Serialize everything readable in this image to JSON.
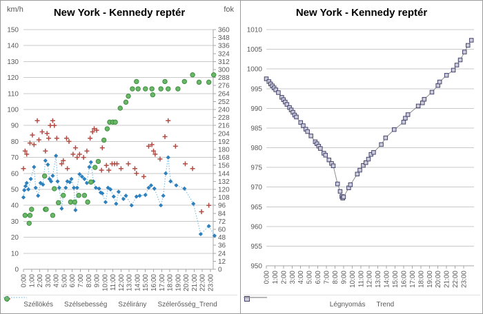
{
  "colors": {
    "gust": "#b04a42",
    "speed": "#2e81bd",
    "trend_dotted": "#7fbde0",
    "direction_fill": "#6ab76a",
    "direction_stroke": "#3f8f3f",
    "pressure_fill": "#ccccdb",
    "pressure_stroke": "#43436b",
    "pressure_trend": "#8c8c8c",
    "grid": "#c9c9c9",
    "axis": "#a6a6a6",
    "tick_text": "#595959",
    "title": "#000000"
  },
  "chart_data": [
    {
      "type": "scatter",
      "title": "New York - Kennedy reptér",
      "y_left": {
        "unit": "km/h",
        "min": 0,
        "max": 150,
        "step": 10,
        "ticks": [
          0,
          10,
          20,
          30,
          40,
          50,
          60,
          70,
          80,
          90,
          100,
          110,
          120,
          130,
          140,
          150
        ]
      },
      "y_right": {
        "unit": "fok",
        "min": 0,
        "max": 360,
        "step": 12,
        "ticks": [
          0,
          12,
          24,
          36,
          48,
          60,
          72,
          84,
          96,
          108,
          120,
          132,
          144,
          156,
          168,
          180,
          192,
          204,
          216,
          228,
          240,
          252,
          264,
          276,
          288,
          300,
          312,
          324,
          336,
          348,
          360
        ]
      },
      "x_labels": [
        "0:00",
        "1:00",
        "2:00",
        "3:00",
        "4:00",
        "5:00",
        "6:00",
        "7:00",
        "8:00",
        "9:00",
        "10:00",
        "11:00",
        "12:00",
        "13:00",
        "14:00",
        "15:00",
        "16:00",
        "17:00",
        "18:00",
        "19:00",
        "20:00",
        "21:00",
        "22:00",
        "23:00"
      ],
      "legend_position": "bottom",
      "grid": true,
      "series": [
        {
          "name": "Széllökés",
          "marker": "plus",
          "axis": "left",
          "points": [
            [
              0,
              63
            ],
            [
              0.2,
              74
            ],
            [
              0.4,
              72
            ],
            [
              0.8,
              79
            ],
            [
              1.1,
              84
            ],
            [
              1.3,
              78
            ],
            [
              1.7,
              93
            ],
            [
              1.9,
              81
            ],
            [
              2.3,
              86
            ],
            [
              2.7,
              74
            ],
            [
              2.9,
              85
            ],
            [
              3.1,
              82
            ],
            [
              3.3,
              90
            ],
            [
              3.6,
              93
            ],
            [
              3.8,
              90
            ],
            [
              4.1,
              82
            ],
            [
              4.7,
              66
            ],
            [
              4.9,
              68
            ],
            [
              5.3,
              82
            ],
            [
              5.4,
              63
            ],
            [
              5.6,
              80
            ],
            [
              6.1,
              72
            ],
            [
              6.4,
              76
            ],
            [
              6.6,
              70
            ],
            [
              6.9,
              72
            ],
            [
              7.4,
              70
            ],
            [
              7.8,
              74
            ],
            [
              8.2,
              82
            ],
            [
              8.5,
              86
            ],
            [
              8.7,
              88
            ],
            [
              9,
              87
            ],
            [
              9.6,
              62
            ],
            [
              9.7,
              76
            ],
            [
              10.2,
              65
            ],
            [
              10.5,
              62
            ],
            [
              10.9,
              66
            ],
            [
              11.2,
              66
            ],
            [
              11.5,
              66
            ],
            [
              12,
              63
            ],
            [
              12.9,
              66
            ],
            [
              13.7,
              63
            ],
            [
              13.9,
              60
            ],
            [
              14.8,
              58
            ],
            [
              15.4,
              77
            ],
            [
              15.8,
              78
            ],
            [
              16,
              74
            ],
            [
              16.2,
              72
            ],
            [
              16.8,
              69
            ],
            [
              17.4,
              83
            ],
            [
              17.8,
              93
            ],
            [
              18.7,
              77
            ],
            [
              19.9,
              66
            ],
            [
              20.8,
              63
            ],
            [
              21.9,
              36
            ],
            [
              22.8,
              40
            ]
          ]
        },
        {
          "name": "Szélsebesség",
          "marker": "diamond",
          "axis": "left",
          "points": [
            [
              0,
              45
            ],
            [
              0.1,
              49.5
            ],
            [
              0.25,
              52
            ],
            [
              0.4,
              54
            ],
            [
              0.6,
              50
            ],
            [
              0.9,
              56.5
            ],
            [
              1.3,
              64
            ],
            [
              1.5,
              51
            ],
            [
              1.8,
              46
            ],
            [
              2.1,
              54
            ],
            [
              2.4,
              53
            ],
            [
              2.7,
              68
            ],
            [
              3,
              65.5
            ],
            [
              3.2,
              56.5
            ],
            [
              3.4,
              55
            ],
            [
              3.6,
              58.5
            ],
            [
              4,
              71
            ],
            [
              4.2,
              55
            ],
            [
              4.4,
              51
            ],
            [
              4.7,
              38
            ],
            [
              4.9,
              46.5
            ],
            [
              5.2,
              51
            ],
            [
              5.4,
              55
            ],
            [
              5.7,
              54.5
            ],
            [
              5.9,
              56.5
            ],
            [
              6.2,
              51
            ],
            [
              6.4,
              37
            ],
            [
              6.6,
              51
            ],
            [
              6.9,
              59.5
            ],
            [
              7.2,
              58
            ],
            [
              7.5,
              56.5
            ],
            [
              7.8,
              54
            ],
            [
              8.1,
              64
            ],
            [
              8.3,
              67
            ],
            [
              8.6,
              55
            ],
            [
              8.9,
              51
            ],
            [
              9.3,
              50.5
            ],
            [
              9.5,
              48
            ],
            [
              9.7,
              47.5
            ],
            [
              10.1,
              42
            ],
            [
              10.4,
              51
            ],
            [
              10.7,
              50
            ],
            [
              11.1,
              45.5
            ],
            [
              11.4,
              41
            ],
            [
              11.7,
              48.5
            ],
            [
              12.3,
              44
            ],
            [
              12.6,
              46
            ],
            [
              13.3,
              40
            ],
            [
              13.9,
              45.5
            ],
            [
              14.3,
              46
            ],
            [
              15,
              46.5
            ],
            [
              15.4,
              51
            ],
            [
              15.7,
              52.5
            ],
            [
              16.1,
              50.5
            ],
            [
              16.9,
              40
            ],
            [
              17.2,
              46
            ],
            [
              17.5,
              60
            ],
            [
              17.8,
              70
            ],
            [
              18.1,
              55
            ],
            [
              18.8,
              52.5
            ],
            [
              19.8,
              50.5
            ],
            [
              20.9,
              41
            ],
            [
              21.8,
              22
            ],
            [
              22.8,
              27
            ],
            [
              23.5,
              21
            ]
          ]
        },
        {
          "name": "Szélirány",
          "marker": "circle",
          "axis": "right",
          "points": [
            [
              0.2,
              81
            ],
            [
              0.7,
              69
            ],
            [
              0.8,
              81
            ],
            [
              1,
              90
            ],
            [
              2.6,
              140
            ],
            [
              2.7,
              90
            ],
            [
              2.8,
              90
            ],
            [
              3.6,
              81
            ],
            [
              3.8,
              121
            ],
            [
              4.3,
              100
            ],
            [
              4.9,
              111
            ],
            [
              5.8,
              101
            ],
            [
              6.3,
              101
            ],
            [
              6.8,
              111
            ],
            [
              7.5,
              111
            ],
            [
              7.9,
              101
            ],
            [
              8.3,
              131
            ],
            [
              8.8,
              153
            ],
            [
              9.2,
              162
            ],
            [
              9.9,
              194
            ],
            [
              10.3,
              211
            ],
            [
              10.6,
              221
            ],
            [
              11,
              221
            ],
            [
              11.3,
              221
            ],
            [
              11.9,
              242
            ],
            [
              12.6,
              251
            ],
            [
              12.9,
              260
            ],
            [
              13.4,
              271
            ],
            [
              13.9,
              282
            ],
            [
              14.1,
              271
            ],
            [
              15,
              271
            ],
            [
              15.8,
              271
            ],
            [
              15.9,
              262
            ],
            [
              16.9,
              271
            ],
            [
              17.4,
              282
            ],
            [
              17.8,
              271
            ],
            [
              19,
              271
            ],
            [
              19.8,
              282
            ],
            [
              20.8,
              292
            ],
            [
              21.6,
              281
            ],
            [
              22.8,
              281
            ],
            [
              23.4,
              292
            ]
          ]
        },
        {
          "name": "Szélerősség_Trend",
          "marker": "dotted-line",
          "axis": "left",
          "points_ref": 1
        }
      ]
    },
    {
      "type": "line",
      "title": "New York - Kennedy reptér",
      "y": {
        "min": 950,
        "max": 1010,
        "step": 5,
        "ticks": [
          950,
          955,
          960,
          965,
          970,
          975,
          980,
          985,
          990,
          995,
          1000,
          1005,
          1010
        ]
      },
      "x_labels": [
        "0:00",
        "1:00",
        "2:00",
        "3:00",
        "4:00",
        "5:00",
        "6:00",
        "7:00",
        "8:00",
        "9:00",
        "10:00",
        "11:00",
        "12:00",
        "13:00",
        "14:00",
        "15:00",
        "16:00",
        "17:00",
        "18:00",
        "19:00",
        "20:00",
        "21:00",
        "22:00",
        "23:00"
      ],
      "legend_position": "bottom",
      "grid": true,
      "series": [
        {
          "name": "Légnyomás",
          "marker": "square",
          "points": [
            [
              0,
              997.5
            ],
            [
              0.3,
              996.8
            ],
            [
              0.5,
              996.2
            ],
            [
              0.7,
              995.7
            ],
            [
              0.9,
              995.2
            ],
            [
              1.1,
              994.7
            ],
            [
              1.4,
              994
            ],
            [
              1.8,
              992.8
            ],
            [
              2,
              992.2
            ],
            [
              2.2,
              991.6
            ],
            [
              2.4,
              991
            ],
            [
              2.7,
              990.2
            ],
            [
              2.9,
              989.6
            ],
            [
              3.1,
              989
            ],
            [
              3.3,
              988.3
            ],
            [
              3.5,
              987.8
            ],
            [
              4,
              986.4
            ],
            [
              4.3,
              985.6
            ],
            [
              4.6,
              984.7
            ],
            [
              4.8,
              984.1
            ],
            [
              5.2,
              983
            ],
            [
              5.7,
              981.5
            ],
            [
              5.9,
              981
            ],
            [
              6.1,
              980.4
            ],
            [
              6.3,
              979.8
            ],
            [
              6.7,
              978.6
            ],
            [
              6.9,
              978.1
            ],
            [
              7.3,
              976.9
            ],
            [
              7.6,
              976
            ],
            [
              7.8,
              975.4
            ],
            [
              8.3,
              970.8
            ],
            [
              8.6,
              968.9
            ],
            [
              8.8,
              967.6
            ],
            [
              8.9,
              967.2
            ],
            [
              9,
              967.5
            ],
            [
              9.6,
              969.8
            ],
            [
              9.8,
              970.6
            ],
            [
              10.6,
              973.3
            ],
            [
              10.9,
              974.3
            ],
            [
              11.3,
              975.5
            ],
            [
              11.6,
              976.2
            ],
            [
              11.9,
              977.1
            ],
            [
              12.2,
              978.3
            ],
            [
              12.5,
              978.8
            ],
            [
              13.4,
              980.8
            ],
            [
              13.9,
              982.5
            ],
            [
              14.9,
              984.6
            ],
            [
              16,
              986.5
            ],
            [
              16.2,
              987.5
            ],
            [
              16.5,
              988.4
            ],
            [
              17.7,
              990.6
            ],
            [
              18.2,
              991.4
            ],
            [
              18.4,
              992.3
            ],
            [
              19.3,
              994.1
            ],
            [
              20,
              995.8
            ],
            [
              20.2,
              996.7
            ],
            [
              21,
              998.4
            ],
            [
              21.8,
              999.7
            ],
            [
              22.2,
              1001
            ],
            [
              22.6,
              1002.3
            ],
            [
              23.1,
              1004.3
            ],
            [
              23.5,
              1006
            ],
            [
              23.9,
              1007.3
            ]
          ]
        },
        {
          "name": "Trend",
          "marker": "line",
          "points_ref": 0
        }
      ]
    }
  ]
}
